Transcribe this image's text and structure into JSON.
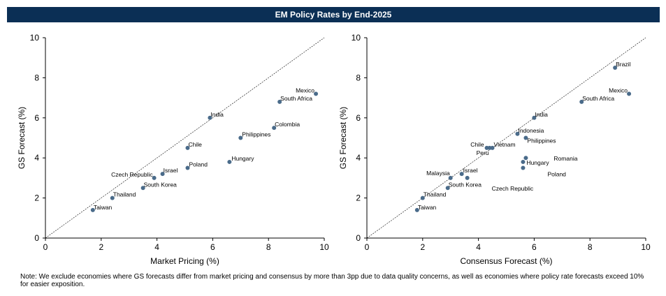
{
  "title": "EM Policy Rates by End-2025",
  "note": "Note: We exclude economies where GS forecasts differ from market pricing and consensus by more than 3pp due to data quality concerns, as well as economies where policy rate forecasts exceed 10% for easier exposition.",
  "colors": {
    "marker": "#4a6b8a",
    "title_bg": "#0b2f55"
  },
  "chart_data": [
    {
      "type": "scatter",
      "title": "",
      "xlabel": "Market Pricing (%)",
      "ylabel": "GS Forecast (%)",
      "xlim": [
        0,
        10
      ],
      "ylim": [
        0,
        10
      ],
      "xticks": [
        0,
        2,
        4,
        6,
        8,
        10
      ],
      "yticks": [
        0,
        2,
        4,
        6,
        8,
        10
      ],
      "reference_line": "45-degree",
      "points": [
        {
          "label": "Mexico",
          "x": 9.7,
          "y": 7.2
        },
        {
          "label": "South Africa",
          "x": 8.4,
          "y": 6.8
        },
        {
          "label": "Colombia",
          "x": 8.2,
          "y": 5.5
        },
        {
          "label": "Philippines",
          "x": 7.0,
          "y": 5.0
        },
        {
          "label": "India",
          "x": 5.9,
          "y": 6.0
        },
        {
          "label": "Hungary",
          "x": 6.6,
          "y": 3.8
        },
        {
          "label": "Chile",
          "x": 5.1,
          "y": 4.5
        },
        {
          "label": "Poland",
          "x": 5.1,
          "y": 3.5
        },
        {
          "label": "Israel",
          "x": 4.2,
          "y": 3.2
        },
        {
          "label": "Czech Republic",
          "x": 3.9,
          "y": 3.0
        },
        {
          "label": "South Korea",
          "x": 3.5,
          "y": 2.5
        },
        {
          "label": "Thailand",
          "x": 2.4,
          "y": 2.0
        },
        {
          "label": "Taiwan",
          "x": 1.7,
          "y": 1.4
        }
      ]
    },
    {
      "type": "scatter",
      "title": "",
      "xlabel": "Consensus Forecast  (%)",
      "ylabel": "GS Forecast (%)",
      "xlim": [
        0,
        10
      ],
      "ylim": [
        0,
        10
      ],
      "xticks": [
        0,
        2,
        4,
        6,
        8,
        10
      ],
      "yticks": [
        0,
        2,
        4,
        6,
        8,
        10
      ],
      "reference_line": "45-degree",
      "points": [
        {
          "label": "Brazil",
          "x": 8.9,
          "y": 8.5
        },
        {
          "label": "Mexico",
          "x": 9.4,
          "y": 7.2
        },
        {
          "label": "South Africa",
          "x": 7.7,
          "y": 6.8
        },
        {
          "label": "India",
          "x": 6.0,
          "y": 6.0
        },
        {
          "label": "Indonesia",
          "x": 5.4,
          "y": 5.2
        },
        {
          "label": "Philippines",
          "x": 5.7,
          "y": 5.0
        },
        {
          "label": "Chile",
          "x": 4.3,
          "y": 4.5
        },
        {
          "label": "Vietnam",
          "x": 4.5,
          "y": 4.5
        },
        {
          "label": "Peru",
          "x": 4.4,
          "y": 4.5
        },
        {
          "label": "Romania",
          "x": 5.7,
          "y": 4.0
        },
        {
          "label": "Hungary",
          "x": 5.6,
          "y": 3.8
        },
        {
          "label": "Poland",
          "x": 5.6,
          "y": 3.5
        },
        {
          "label": "Israel",
          "x": 3.4,
          "y": 3.2
        },
        {
          "label": "Malaysia",
          "x": 3.0,
          "y": 3.0
        },
        {
          "label": "Czech Republic",
          "x": 3.6,
          "y": 3.0
        },
        {
          "label": "South Korea",
          "x": 2.9,
          "y": 2.5
        },
        {
          "label": "Thailand",
          "x": 2.0,
          "y": 2.0
        },
        {
          "label": "Taiwan",
          "x": 1.8,
          "y": 1.4
        }
      ]
    }
  ]
}
